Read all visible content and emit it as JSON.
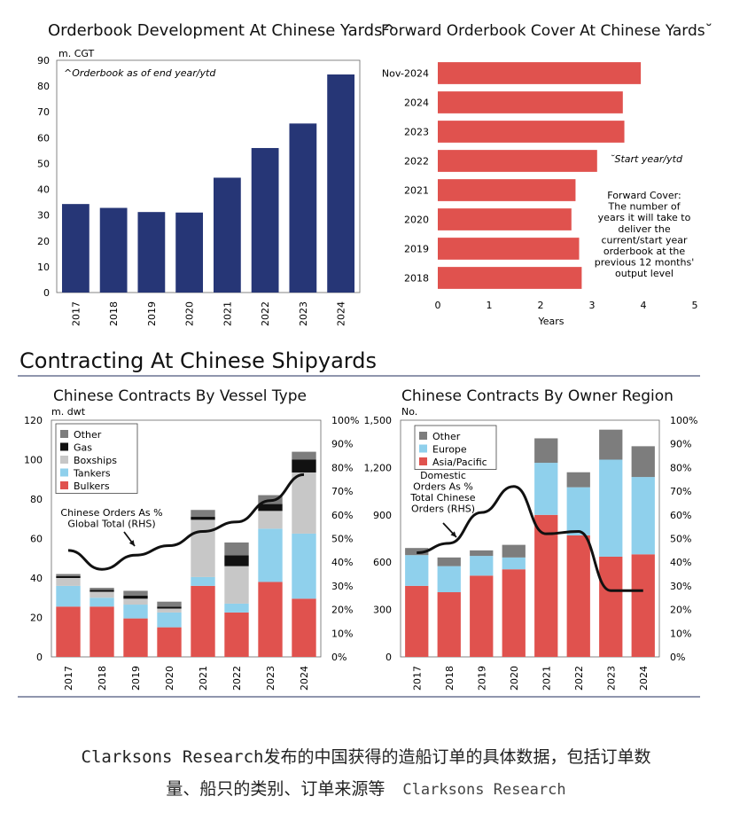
{
  "section_title": "Contracting At Chinese Shipyards",
  "caption": {
    "line1": "Clarksons Research发布的中国获得的造船订单的具体数据，包括订单数",
    "line2": "量、船只的类别、订单来源等",
    "source": "Clarksons Research"
  },
  "colors": {
    "navy": "#263676",
    "red": "#e0524e",
    "light_blue": "#8fd0ec",
    "light_gray": "#c7c7c7",
    "dark_gray": "#7d7d7d",
    "black": "#111111",
    "rule": "#6a7392"
  },
  "chart_data": [
    {
      "type": "bar",
      "title": "Orderbook Development At Chinese Yards^",
      "ylabel": "m. CGT",
      "note": "^Orderbook as of end year/ytd",
      "categories": [
        "2017",
        "2018",
        "2019",
        "2020",
        "2021",
        "2022",
        "2023",
        "2024"
      ],
      "values": [
        34.3,
        32.8,
        31.2,
        31.0,
        44.5,
        56.0,
        65.5,
        84.5
      ],
      "ylim": [
        0,
        90
      ],
      "yticks": [
        0,
        10,
        20,
        30,
        40,
        50,
        60,
        70,
        80,
        90
      ],
      "color": "#263676"
    },
    {
      "type": "bar",
      "orientation": "horizontal",
      "title": "Forward Orderbook Cover At Chinese Yards˘",
      "xlabel": "Years",
      "note": "˘Start year/ytd",
      "annotation": [
        "Forward Cover:",
        "The number of",
        "years it will take to",
        "deliver the",
        "current/start year",
        "orderbook at the",
        "previous 12 months'",
        "output level"
      ],
      "categories": [
        "Nov-2024",
        "2024",
        "2023",
        "2022",
        "2021",
        "2020",
        "2019",
        "2018"
      ],
      "values": [
        3.95,
        3.6,
        3.63,
        3.1,
        2.68,
        2.6,
        2.75,
        2.8
      ],
      "xlim": [
        0,
        5
      ],
      "xticks": [
        0,
        1,
        2,
        3,
        4,
        5
      ],
      "color": "#e0524e"
    },
    {
      "type": "bar",
      "stacked": true,
      "title": "Chinese Contracts By Vessel Type",
      "ylabel": "m. dwt",
      "categories": [
        "2017",
        "2018",
        "2019",
        "2020",
        "2021",
        "2022",
        "2023",
        "2024"
      ],
      "ylim": [
        0,
        120
      ],
      "yticks": [
        0,
        20,
        40,
        60,
        80,
        100,
        120
      ],
      "y2ticks": [
        "0%",
        "10%",
        "20%",
        "30%",
        "40%",
        "50%",
        "60%",
        "70%",
        "80%",
        "90%",
        "100%"
      ],
      "legend": [
        "Other",
        "Gas",
        "Boxships",
        "Tankers",
        "Bulkers"
      ],
      "series": [
        {
          "name": "Bulkers",
          "color": "#e0524e",
          "values": [
            25.5,
            25.5,
            19.5,
            15.0,
            36.0,
            22.5,
            38.0,
            29.5
          ]
        },
        {
          "name": "Tankers",
          "color": "#8fd0ec",
          "values": [
            10.5,
            4.5,
            7.0,
            7.5,
            4.5,
            4.5,
            27.0,
            33.0
          ]
        },
        {
          "name": "Boxships",
          "color": "#c7c7c7",
          "values": [
            4.0,
            3.0,
            3.0,
            2.0,
            29.0,
            19.0,
            9.0,
            31.0
          ]
        },
        {
          "name": "Gas",
          "color": "#111111",
          "values": [
            1.0,
            1.0,
            1.5,
            1.0,
            1.5,
            5.5,
            3.5,
            6.5
          ]
        },
        {
          "name": "Other",
          "color": "#7d7d7d",
          "values": [
            1.0,
            1.0,
            2.5,
            2.5,
            3.5,
            6.5,
            4.5,
            4.0
          ]
        }
      ],
      "line": {
        "name": "Chinese Orders As % Global Total (RHS)",
        "label": [
          "Chinese Orders As %",
          "Global Total (RHS)"
        ],
        "values": [
          45,
          37,
          43,
          47,
          53,
          57,
          66,
          77
        ]
      }
    },
    {
      "type": "bar",
      "stacked": true,
      "title": "Chinese Contracts By Owner Region",
      "ylabel": "No.",
      "categories": [
        "2017",
        "2018",
        "2019",
        "2020",
        "2021",
        "2022",
        "2023",
        "2024"
      ],
      "ylim": [
        0,
        1500
      ],
      "yticks": [
        0,
        300,
        600,
        900,
        1200,
        1500
      ],
      "ytick_labels": [
        "0",
        "300",
        "600",
        "900",
        "1,200",
        "1,500"
      ],
      "y2ticks": [
        "0%",
        "10%",
        "20%",
        "30%",
        "40%",
        "50%",
        "60%",
        "70%",
        "80%",
        "90%",
        "100%"
      ],
      "legend": [
        "Other",
        "Europe",
        "Asia/Pacific"
      ],
      "series": [
        {
          "name": "Asia/Pacific",
          "color": "#e0524e",
          "values": [
            450,
            410,
            515,
            555,
            900,
            770,
            635,
            650
          ]
        },
        {
          "name": "Europe",
          "color": "#8fd0ec",
          "values": [
            195,
            165,
            125,
            75,
            330,
            305,
            615,
            490
          ]
        },
        {
          "name": "Other",
          "color": "#7d7d7d",
          "values": [
            45,
            55,
            35,
            80,
            155,
            95,
            190,
            195
          ]
        }
      ],
      "line": {
        "name": "Domestic Orders As % Total Chinese Orders (RHS)",
        "label": [
          "Domestic",
          "Orders As %",
          "Total Chinese",
          "Orders (RHS)"
        ],
        "values": [
          44,
          48,
          61,
          72,
          52,
          53,
          28,
          28
        ]
      }
    }
  ]
}
